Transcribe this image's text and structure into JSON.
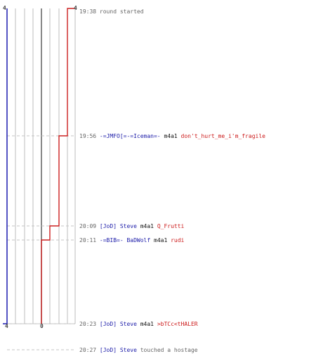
{
  "chart_data": {
    "type": "line",
    "title": "",
    "xlabel": "",
    "ylabel": "",
    "left_axis_top_label": "4",
    "right_axis_top_label": "4",
    "left_axis_bottom_label": "4",
    "red_start_label": "0",
    "red_series": {
      "name": "",
      "color": "#cc2020",
      "steps": [
        {
          "time": "20:23",
          "value": 0
        },
        {
          "time": "20:11",
          "value": 1
        },
        {
          "time": "20:09",
          "value": 2
        },
        {
          "time": "19:56",
          "value": 3
        },
        {
          "time": "19:38",
          "value": 4
        }
      ]
    },
    "blue_series": {
      "name": "",
      "color": "#1a1ab0",
      "value": 4
    }
  },
  "events": [
    {
      "time": "19:38",
      "text": "round started",
      "type": "info"
    },
    {
      "time": "19:56",
      "killer": "-=JMFO[=-=Iceman=-",
      "weapon": "m4a1",
      "victim": "don't_hurt_me_i'm_fragile",
      "type": "kill"
    },
    {
      "time": "20:09",
      "killer": "[JoD] Steve",
      "weapon": "m4a1",
      "victim": "Q_Frutti",
      "type": "kill"
    },
    {
      "time": "20:11",
      "killer": "-=BIB=- BaDWolf",
      "weapon": "m4a1",
      "victim": "rudi",
      "type": "kill"
    },
    {
      "time": "20:23",
      "killer": "[JoD] Steve",
      "weapon": "m4a1",
      "victim": ">bTCc<tHALER",
      "type": "kill"
    },
    {
      "time": "20:27",
      "actor": "[JoD] Steve",
      "text": "touched a hostage",
      "type": "hostage"
    }
  ],
  "colors": {
    "blue_line": "#1a1ab0",
    "red_line": "#cc2020",
    "grid": "#bdbdbd",
    "dash": "#c4c4c4"
  }
}
